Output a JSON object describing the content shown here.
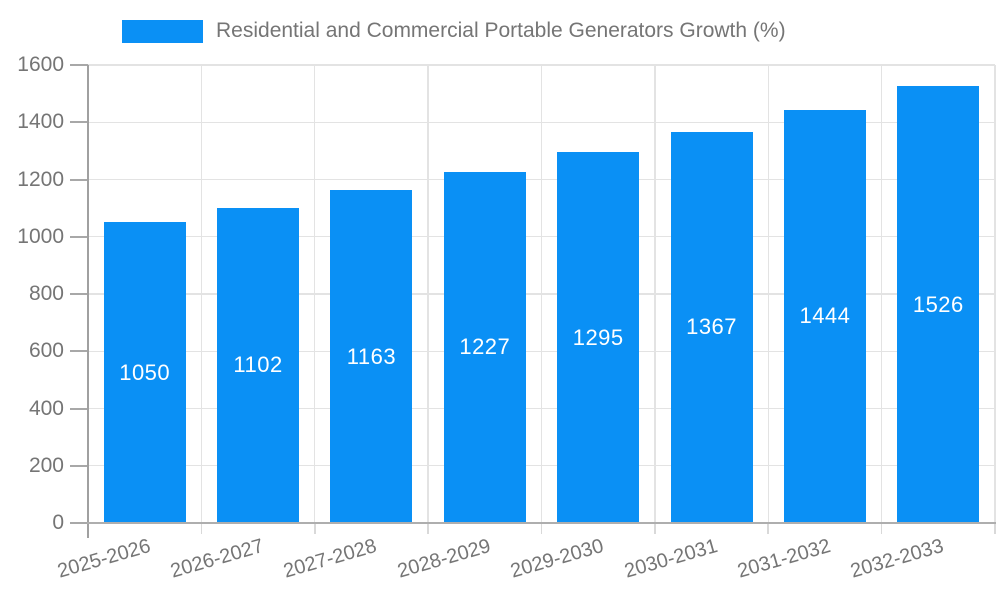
{
  "chart_data": {
    "type": "bar",
    "title": "Residential and Commercial Portable Generators Growth (%)",
    "categories": [
      "2025-2026",
      "2026-2027",
      "2027-2028",
      "2028-2029",
      "2029-2030",
      "2030-2031",
      "2031-2032",
      "2032-2033"
    ],
    "values": [
      1050,
      1102,
      1163,
      1227,
      1295,
      1367,
      1444,
      1526
    ],
    "value_labels": [
      "1050",
      "1102",
      "1163",
      "1227",
      "1295",
      "1367",
      "1444",
      "1526"
    ],
    "xlabel": "",
    "ylabel": "",
    "ylim": [
      0,
      1600
    ],
    "ytick_step": 200,
    "yticks": [
      0,
      200,
      400,
      600,
      800,
      1000,
      1200,
      1400,
      1600
    ],
    "grid": true,
    "legend_position": "top",
    "colors": {
      "bar": "#0a90f5",
      "value_label": "#ffffff",
      "axis_line": "#a8a8a8",
      "gridline": "#e3e3e3",
      "tick_text": "#757575",
      "background": "#ffffff"
    }
  }
}
